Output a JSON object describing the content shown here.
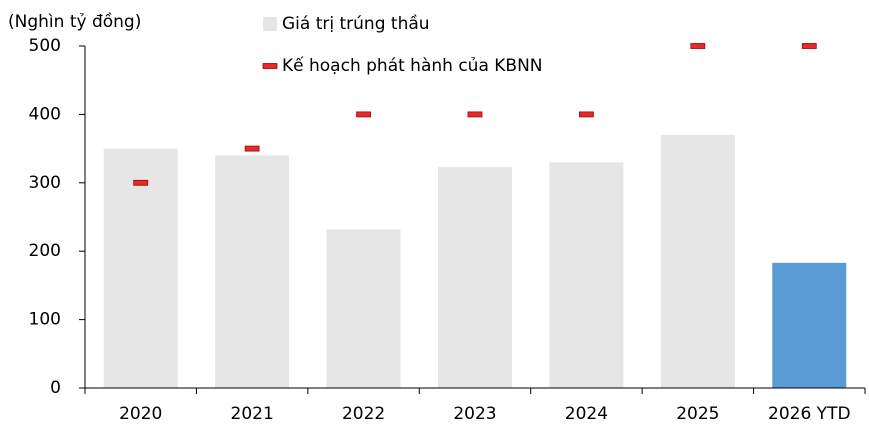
{
  "chart_data": {
    "type": "bar",
    "y_label": "(Nghìn tỷ đồng)",
    "categories": [
      "2020",
      "2021",
      "2022",
      "2023",
      "2024",
      "2025",
      "2026 YTD"
    ],
    "series": [
      {
        "name": "Giá trị trúng thầu",
        "type": "bar",
        "color": "#e6e6e6",
        "colors": [
          "#e6e6e6",
          "#e6e6e6",
          "#e6e6e6",
          "#e6e6e6",
          "#e6e6e6",
          "#e6e6e6",
          "#5b9bd5"
        ],
        "values": [
          350,
          340,
          232,
          323,
          330,
          370,
          183
        ]
      },
      {
        "name": "Kế hoạch phát hành của KBNN",
        "type": "marker",
        "color": "#e32b2b",
        "values": [
          300,
          350,
          400,
          400,
          400,
          500,
          500
        ]
      }
    ],
    "ylim": [
      0,
      500
    ],
    "yticks": [
      0,
      100,
      200,
      300,
      400,
      500
    ],
    "grid": false
  }
}
